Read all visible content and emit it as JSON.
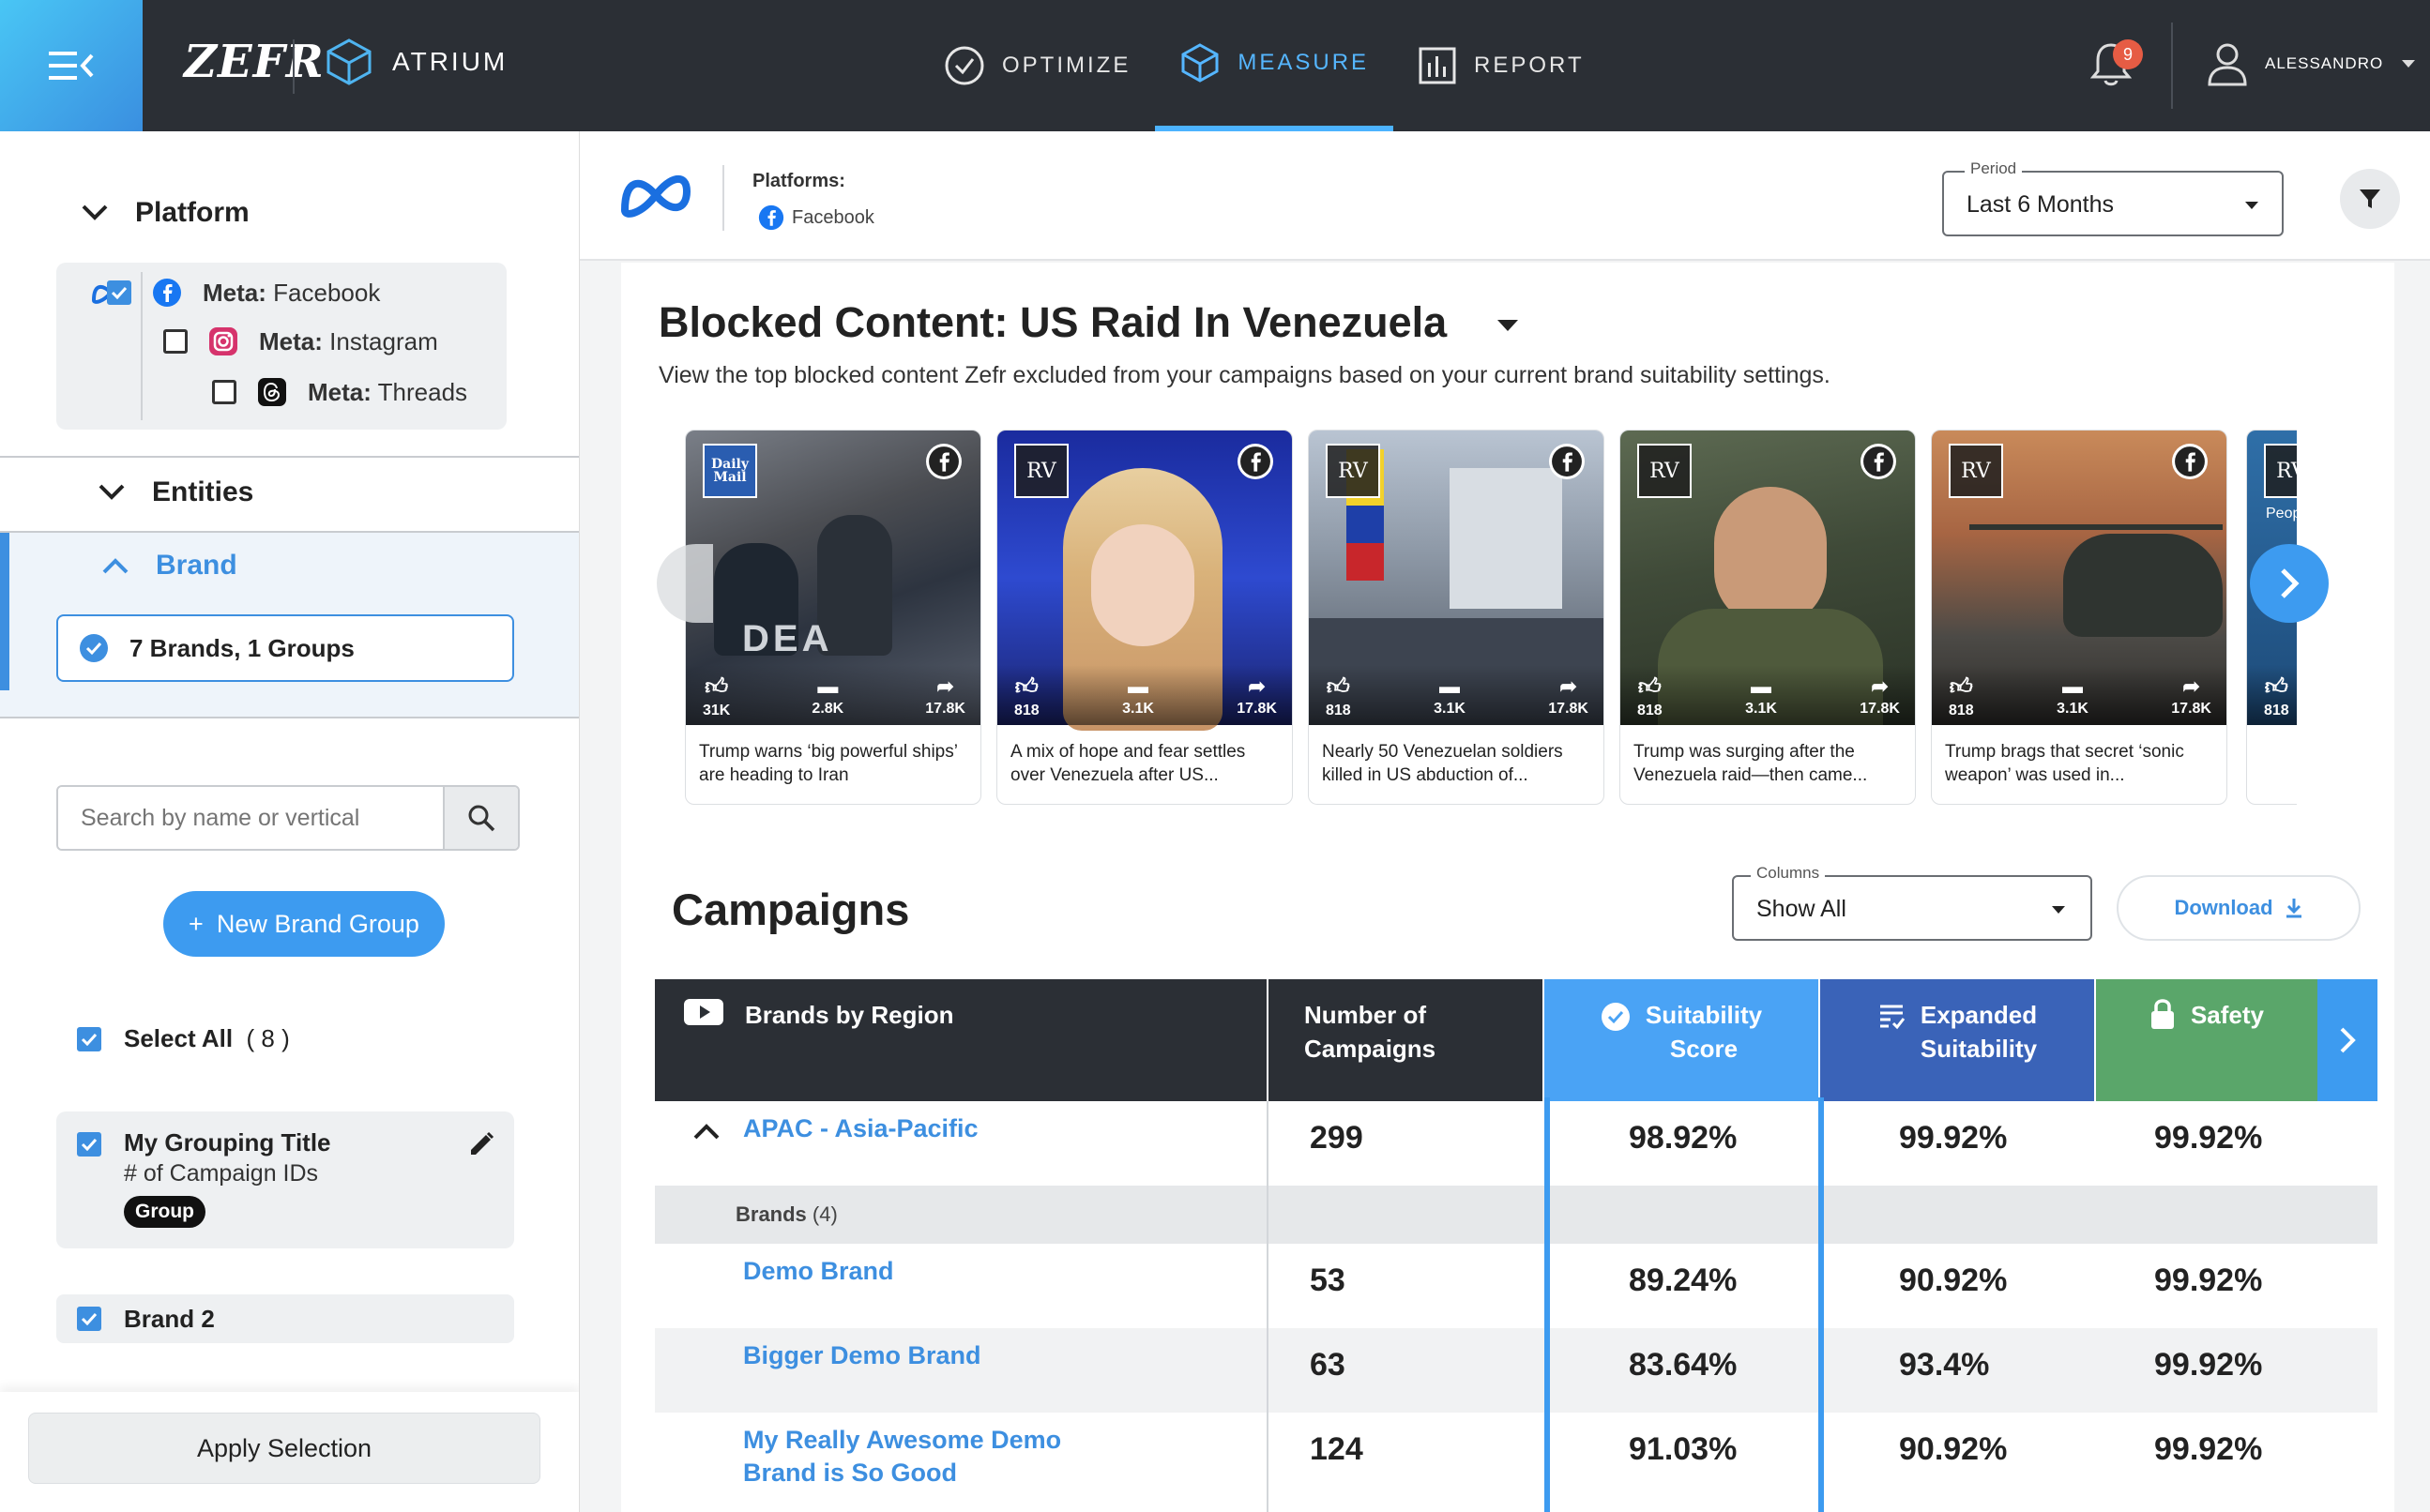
{
  "topbar": {
    "logo": "ZEFR",
    "product": "ATRIUM",
    "nav": [
      {
        "label": "OPTIMIZE",
        "active": false
      },
      {
        "label": "MEASURE",
        "active": true
      },
      {
        "label": "REPORT",
        "active": false
      }
    ],
    "notification_count": "9",
    "user": "ALESSANDRO"
  },
  "sidebar": {
    "platform_heading": "Platform",
    "platforms": [
      {
        "prefix": "Meta:",
        "name": "Facebook",
        "checked": true
      },
      {
        "prefix": "Meta:",
        "name": "Instagram",
        "checked": false
      },
      {
        "prefix": "Meta:",
        "name": "Threads",
        "checked": false
      }
    ],
    "entities_heading": "Entities",
    "brand_heading": "Brand",
    "brand_summary": "7 Brands, 1 Groups",
    "search_placeholder": "Search by name or vertical",
    "new_group_label": "New Brand Group",
    "select_all_label": "Select All",
    "select_all_count": "( 8 )",
    "group_card": {
      "title": "My Grouping Title",
      "subtitle": "# of Campaign IDs",
      "tag": "Group"
    },
    "brand2_label": "Brand 2",
    "apply_label": "Apply Selection"
  },
  "page_header": {
    "platforms_label": "Platforms:",
    "platform_value": "Facebook",
    "period_label": "Period",
    "period_value": "Last 6 Months"
  },
  "blocked": {
    "title": "Blocked Content: US Raid In Venezuela",
    "subtitle": "View the top blocked content Zefr excluded from your campaigns based on your current brand suitability settings.",
    "posts": [
      {
        "publisher": "Daily Mail",
        "likes": "31K",
        "comments": "2.8K",
        "shares": "17.8K",
        "caption": "Trump warns ‘big powerful ships’ are heading to Iran"
      },
      {
        "publisher": "RV",
        "likes": "818",
        "comments": "3.1K",
        "shares": "17.8K",
        "caption": "A mix of hope and fear settles over Venezuela after US..."
      },
      {
        "publisher": "RV",
        "likes": "818",
        "comments": "3.1K",
        "shares": "17.8K",
        "caption": "Nearly 50 Venezuelan soldiers killed in US abduction of..."
      },
      {
        "publisher": "RV",
        "likes": "818",
        "comments": "3.1K",
        "shares": "17.8K",
        "caption": "Trump was surging after the Venezuela raid—then came..."
      },
      {
        "publisher": "RV",
        "likes": "818",
        "comments": "3.1K",
        "shares": "17.8K",
        "caption": "Trump brags that secret ‘sonic weapon’ was used in..."
      },
      {
        "publisher": "RV",
        "likes": "818",
        "comments": "",
        "shares": "",
        "caption": "Peop"
      }
    ]
  },
  "campaigns": {
    "title": "Campaigns",
    "columns_label": "Columns",
    "columns_value": "Show All",
    "download_label": "Download",
    "headers": {
      "brands": "Brands by Region",
      "num": [
        "Number of",
        "Campaigns"
      ],
      "suit": [
        "Suitability",
        "Score"
      ],
      "exp": [
        "Expanded",
        "Suitability"
      ],
      "safety": "Safety"
    },
    "region": {
      "name": "APAC - Asia-Pacific",
      "campaigns": "299",
      "suitability": "98.92%",
      "expanded": "99.92%",
      "safety": "99.92%"
    },
    "brands_label": "Brands",
    "brands_count": "(4)",
    "rows": [
      {
        "name": "Demo Brand",
        "campaigns": "53",
        "suitability": "89.24%",
        "expanded": "90.92%",
        "safety": "99.92%"
      },
      {
        "name": "Bigger Demo Brand",
        "campaigns": "63",
        "suitability": "83.64%",
        "expanded": "93.4%",
        "safety": "99.92%"
      },
      {
        "name_line1": "My Really Awesome Demo",
        "name_line2": "Brand is So Good",
        "campaigns": "124",
        "suitability": "91.03%",
        "expanded": "90.92%",
        "safety": "99.92%"
      }
    ]
  },
  "colors": {
    "accent": "#3d8fe0",
    "suit_header": "#4aa3f5",
    "exp_header": "#3a63b8",
    "safety_header": "#5aa66a",
    "topbar": "#2b2f35"
  }
}
